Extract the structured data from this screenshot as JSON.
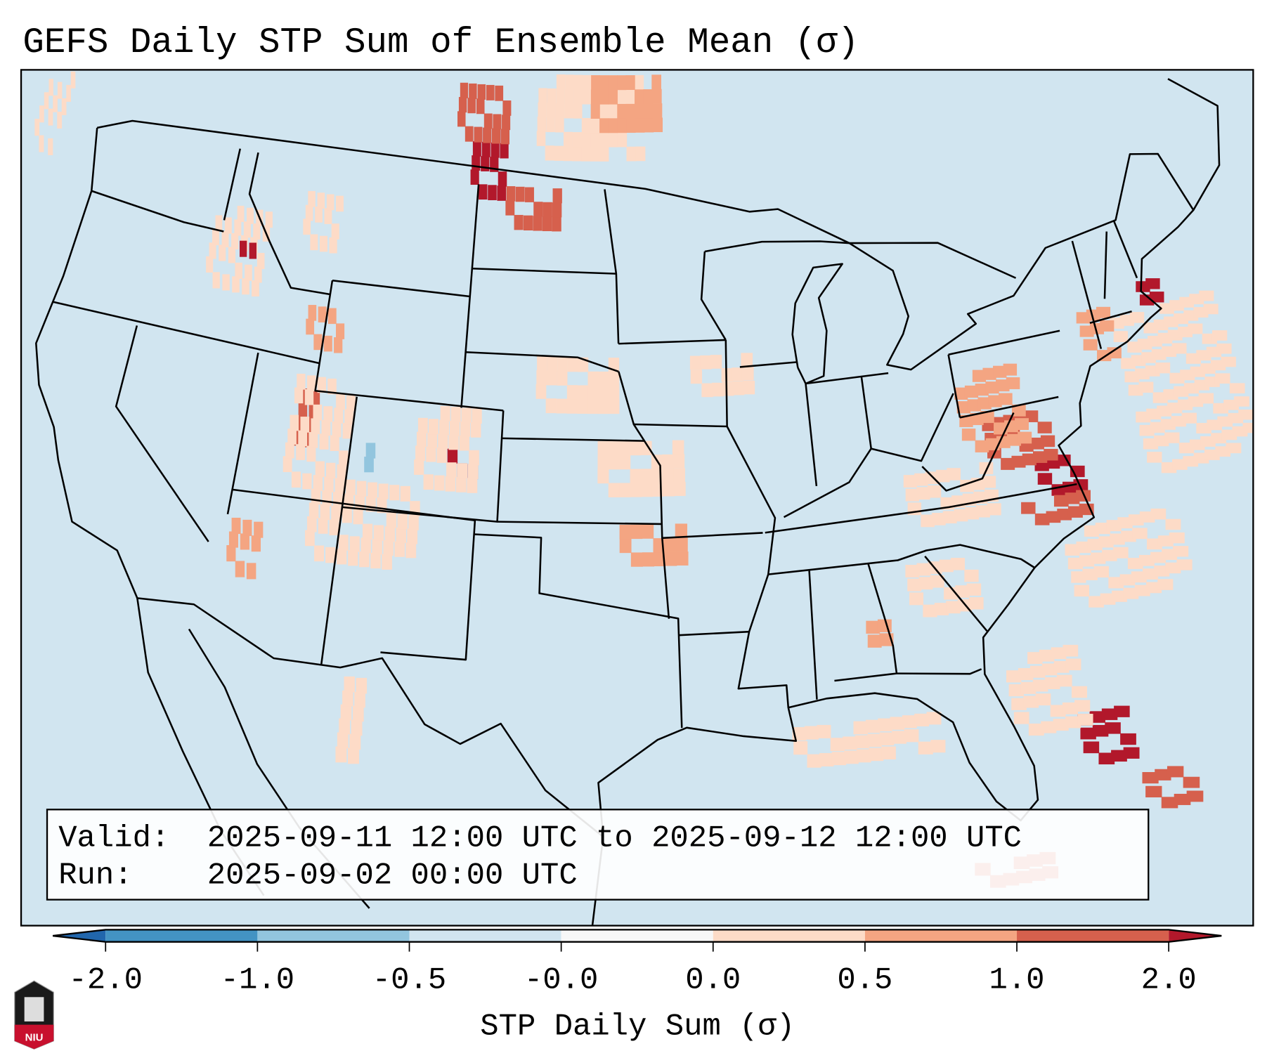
{
  "title": "GEFS Daily STP Sum of Ensemble Mean (σ)",
  "info_box": {
    "valid_label": "Valid:",
    "valid_value": "2025-09-11 12:00 UTC to 2025-09-12 12:00 UTC",
    "run_label": "Run:",
    "run_value": "2025-09-02 00:00 UTC"
  },
  "colorbar": {
    "label": "STP Daily Sum (σ)",
    "ticks": [
      "-2.0",
      "-1.0",
      "-0.5",
      "-0.0",
      "0.0",
      "0.5",
      "1.0",
      "2.0"
    ],
    "under_color": "#2166ac",
    "over_color": "#b2182b",
    "colors": [
      "#4393c3",
      "#92c5de",
      "#d1e5f0",
      "#f7f7f7",
      "#fddbc7",
      "#f4a582",
      "#d6604d"
    ]
  },
  "logo": {
    "text": "NIU"
  },
  "map": {
    "background": "#d1e5f0",
    "level_colors": {
      "5": "#fddbc7",
      "6": "#f4a582",
      "7": "#d6604d",
      "8": "#b2182b",
      "2": "#92c5de",
      "4": "#f7f7f7"
    },
    "cells_lon_lat_wdeg_hdeg_level": [
      [
        -104.5,
        48.5,
        2,
        2.5,
        8
      ],
      [
        -102.5,
        47.5,
        3,
        1.5,
        7
      ],
      [
        -105.5,
        50.5,
        3,
        2,
        7
      ],
      [
        -101,
        50,
        6,
        3,
        5
      ],
      [
        -98,
        51,
        4,
        2,
        6
      ],
      [
        -77.5,
        36.2,
        2,
        1.4,
        8
      ],
      [
        -79.5,
        37.5,
        3,
        2,
        7
      ],
      [
        -80.5,
        38.3,
        3,
        3,
        6
      ],
      [
        -83.5,
        36,
        4,
        2,
        5
      ],
      [
        -78.5,
        35.3,
        3,
        1,
        7
      ],
      [
        -72.5,
        36,
        5,
        6,
        5
      ],
      [
        -77,
        32,
        5,
        3,
        5
      ],
      [
        -74,
        40.5,
        1.5,
        2,
        6
      ],
      [
        -70.8,
        42,
        1,
        1,
        8
      ],
      [
        -78,
        26.5,
        2,
        2,
        8
      ],
      [
        -76,
        24.5,
        2,
        1.5,
        7
      ],
      [
        -80.5,
        28,
        3,
        3,
        5
      ],
      [
        -83,
        23,
        3,
        1,
        7
      ],
      [
        -111.7,
        39,
        1,
        2,
        7
      ],
      [
        -112,
        37.5,
        3,
        4,
        5
      ],
      [
        -104.5,
        38.5,
        1.2,
        1,
        8
      ],
      [
        -106,
        38,
        3,
        3,
        5
      ],
      [
        -108.3,
        38.4,
        0.5,
        1,
        2
      ],
      [
        -110.5,
        35,
        5,
        3,
        5
      ],
      [
        -113.8,
        34,
        1.5,
        2,
        6
      ],
      [
        -100.5,
        41,
        4,
        2,
        5
      ],
      [
        -97.5,
        38,
        4,
        2,
        5
      ],
      [
        -96.5,
        35.5,
        3,
        1.5,
        6
      ],
      [
        -84,
        32.8,
        3,
        2,
        5
      ],
      [
        -86,
        32,
        1,
        1,
        6
      ],
      [
        -117.5,
        44,
        3,
        3,
        5
      ],
      [
        -116,
        45.3,
        1,
        0.5,
        8
      ],
      [
        -89.5,
        28,
        6,
        1.5,
        5
      ],
      [
        -108,
        28,
        1,
        3,
        5
      ],
      [
        -93,
        41.5,
        3,
        1.5,
        5
      ],
      [
        -113,
        46,
        2,
        2,
        5
      ],
      [
        -128,
        47,
        1.5,
        3,
        5
      ],
      [
        -133,
        36,
        2,
        1.5,
        4
      ],
      [
        -112,
        42.5,
        2,
        1.5,
        6
      ]
    ],
    "outline": [
      [
        -124.7,
        48.4
      ],
      [
        -124,
        46.2
      ],
      [
        -124.1,
        43
      ],
      [
        -124.4,
        40.4
      ],
      [
        -123.7,
        39
      ],
      [
        -122.5,
        37.7
      ],
      [
        -121.9,
        36.6
      ],
      [
        -120.6,
        34.6
      ],
      [
        -118.4,
        34
      ],
      [
        -117.1,
        32.5
      ],
      [
        -114.7,
        32.7
      ],
      [
        -111,
        31.3
      ],
      [
        -108.2,
        31.3
      ],
      [
        -106.5,
        31.8
      ],
      [
        -104.5,
        29.6
      ],
      [
        -103,
        29
      ],
      [
        -101.4,
        29.8
      ],
      [
        -99.5,
        27.5
      ],
      [
        -97.2,
        25.9
      ],
      [
        -97.4,
        27.8
      ],
      [
        -95,
        29.3
      ],
      [
        -93.8,
        29.7
      ],
      [
        -91.5,
        29.3
      ],
      [
        -89.4,
        29
      ],
      [
        -89.6,
        30.2
      ],
      [
        -88,
        30.4
      ],
      [
        -86,
        30.4
      ],
      [
        -84.3,
        30
      ],
      [
        -83,
        29
      ],
      [
        -82.6,
        27.5
      ],
      [
        -81.8,
        26
      ],
      [
        -81,
        25.2
      ],
      [
        -80.2,
        25.8
      ],
      [
        -80.1,
        27
      ],
      [
        -80.6,
        28.5
      ],
      [
        -81.4,
        30.5
      ],
      [
        -81.2,
        31.8
      ],
      [
        -79.9,
        32.8
      ],
      [
        -78.5,
        33.9
      ],
      [
        -77,
        34.7
      ],
      [
        -75.5,
        35.2
      ],
      [
        -75.9,
        36.9
      ],
      [
        -76.3,
        38
      ],
      [
        -75.1,
        38.5
      ],
      [
        -74.9,
        39.3
      ],
      [
        -74,
        40.5
      ],
      [
        -72,
        41
      ],
      [
        -70.6,
        41.6
      ],
      [
        -70,
        41.8
      ],
      [
        -70.7,
        42.6
      ],
      [
        -70.2,
        43.7
      ],
      [
        -68,
        44.4
      ],
      [
        -67,
        44.8
      ],
      [
        -67.8,
        47.1
      ],
      [
        -69.2,
        47.4
      ],
      [
        -70.9,
        45.3
      ],
      [
        -74.7,
        45
      ],
      [
        -76.8,
        43.6
      ],
      [
        -79.2,
        43.3
      ],
      [
        -78.9,
        42.9
      ],
      [
        -82.4,
        41.7
      ],
      [
        -83.5,
        42
      ],
      [
        -82.5,
        43
      ],
      [
        -82.1,
        43.6
      ],
      [
        -82.5,
        45.3
      ],
      [
        -84.5,
        46.5
      ],
      [
        -88,
        48
      ],
      [
        -89.5,
        48
      ],
      [
        -95,
        49
      ],
      [
        -123,
        49
      ],
      [
        -124.7,
        48.4
      ]
    ],
    "borders": [
      [
        [
          -124,
          46.2
        ],
        [
          -119,
          46
        ],
        [
          -116.9,
          46
        ]
      ],
      [
        [
          -117,
          49
        ],
        [
          -117,
          46.4
        ]
      ],
      [
        [
          -124.2,
          42
        ],
        [
          -111,
          42
        ]
      ],
      [
        [
          -116,
          49
        ],
        [
          -116,
          47.5
        ],
        [
          -114.5,
          46
        ],
        [
          -113,
          44.5
        ],
        [
          -111,
          44.5
        ]
      ],
      [
        [
          -111,
          45
        ],
        [
          -104,
          45
        ]
      ],
      [
        [
          -104,
          46
        ],
        [
          -96.6,
          46
        ]
      ],
      [
        [
          -104,
          49
        ],
        [
          -104,
          41
        ]
      ],
      [
        [
          -111,
          45
        ],
        [
          -111,
          41
        ],
        [
          -102,
          41
        ]
      ],
      [
        [
          -109,
          41
        ],
        [
          -109,
          37
        ],
        [
          -102,
          37
        ],
        [
          -102,
          41
        ]
      ],
      [
        [
          -114,
          42
        ],
        [
          -114,
          36.1
        ]
      ],
      [
        [
          -120,
          42
        ],
        [
          -120,
          39
        ],
        [
          -114.6,
          35
        ]
      ],
      [
        [
          -109,
          37
        ],
        [
          -109,
          31.3
        ]
      ],
      [
        [
          -114,
          37
        ],
        [
          -103,
          37
        ]
      ],
      [
        [
          -103,
          37
        ],
        [
          -103,
          32
        ],
        [
          -106.6,
          32
        ]
      ],
      [
        [
          -103,
          36.5
        ],
        [
          -100,
          36.5
        ],
        [
          -100,
          34.5
        ],
        [
          -94,
          33.6
        ],
        [
          -94,
          29.7
        ]
      ],
      [
        [
          -102,
          37
        ],
        [
          -94.6,
          37
        ]
      ],
      [
        [
          -102,
          40
        ],
        [
          -95.3,
          40
        ]
      ],
      [
        [
          -104,
          43
        ],
        [
          -98.5,
          43
        ],
        [
          -96.5,
          42.5
        ]
      ],
      [
        [
          -96.5,
          43.5
        ],
        [
          -91.2,
          43.5
        ]
      ],
      [
        [
          -97.2,
          49
        ],
        [
          -96.6,
          46
        ],
        [
          -96.5,
          43.5
        ]
      ],
      [
        [
          -96.5,
          42.5
        ],
        [
          -95.8,
          40.6
        ],
        [
          -94.6,
          39.1
        ],
        [
          -94.6,
          36.5
        ],
        [
          -94.4,
          33.6
        ]
      ],
      [
        [
          -95.8,
          40.6
        ],
        [
          -91.4,
          40.4
        ]
      ],
      [
        [
          -91.2,
          43.5
        ],
        [
          -91.4,
          40.4
        ],
        [
          -89.5,
          37
        ],
        [
          -90,
          35
        ],
        [
          -91,
          33
        ],
        [
          -91.6,
          31
        ],
        [
          -89.6,
          31
        ],
        [
          -89.6,
          30.2
        ]
      ],
      [
        [
          -94.6,
          36.5
        ],
        [
          -90.1,
          36.5
        ]
      ],
      [
        [
          -94,
          33
        ],
        [
          -91,
          33
        ]
      ],
      [
        [
          -90,
          36.5
        ],
        [
          -81.7,
          36.6
        ],
        [
          -75.9,
          36.5
        ]
      ],
      [
        [
          -90,
          35
        ],
        [
          -84.3,
          35
        ],
        [
          -83,
          35.2
        ],
        [
          -81.5,
          35.2
        ],
        [
          -79,
          34.3
        ],
        [
          -78.5,
          33.9
        ]
      ],
      [
        [
          -88.2,
          35
        ],
        [
          -88.4,
          30.4
        ]
      ],
      [
        [
          -85.6,
          35
        ],
        [
          -85,
          32
        ],
        [
          -85,
          31
        ],
        [
          -87.6,
          31
        ]
      ],
      [
        [
          -85,
          31
        ],
        [
          -82,
          30.6
        ],
        [
          -81.5,
          30.7
        ]
      ],
      [
        [
          -83.1,
          35
        ],
        [
          -81,
          32
        ]
      ],
      [
        [
          -89.1,
          37
        ],
        [
          -86,
          38
        ],
        [
          -84.8,
          39.1
        ],
        [
          -82.6,
          38.4
        ],
        [
          -80.6,
          40.6
        ]
      ],
      [
        [
          -87.5,
          41.7
        ],
        [
          -87.5,
          38
        ]
      ],
      [
        [
          -84.8,
          41.7
        ],
        [
          -84.8,
          39.1
        ]
      ],
      [
        [
          -87.5,
          41.7
        ],
        [
          -83.5,
          41.7
        ]
      ],
      [
        [
          -90.6,
          42.5
        ],
        [
          -87.8,
          42.5
        ]
      ],
      [
        [
          -80.5,
          42
        ],
        [
          -75,
          42
        ]
      ],
      [
        [
          -80.5,
          39.7
        ],
        [
          -75.8,
          39.7
        ]
      ],
      [
        [
          -80.5,
          42
        ],
        [
          -80.5,
          39.7
        ]
      ],
      [
        [
          -82.6,
          38.2
        ],
        [
          -81.7,
          37.2
        ],
        [
          -80,
          37.4
        ],
        [
          -78,
          39.5
        ]
      ],
      [
        [
          -73.3,
          45
        ],
        [
          -73.3,
          41
        ]
      ],
      [
        [
          -71.5,
          45
        ],
        [
          -72.5,
          42.7
        ]
      ],
      [
        [
          -71,
          45.3
        ],
        [
          -70.7,
          43.1
        ]
      ],
      [
        [
          -73.5,
          42
        ],
        [
          -71.4,
          42
        ]
      ],
      [
        [
          -92,
          46.7
        ],
        [
          -92.3,
          45
        ],
        [
          -91.2,
          43.5
        ]
      ],
      [
        [
          -87.8,
          42.3
        ],
        [
          -87.5,
          41.7
        ],
        [
          -86.6,
          41.9
        ],
        [
          -86.2,
          43.5
        ],
        [
          -86.4,
          44.7
        ],
        [
          -85,
          45.8
        ],
        [
          -86.5,
          45.8
        ],
        [
          -87.6,
          44.6
        ],
        [
          -87.9,
          43.5
        ],
        [
          -87.8,
          42.3
        ]
      ],
      [
        [
          -84.5,
          46.5
        ],
        [
          -86,
          46.7
        ],
        [
          -89,
          46.9
        ],
        [
          -92,
          46.7
        ]
      ],
      [
        [
          -117.1,
          32.5
        ],
        [
          -116,
          30
        ],
        [
          -114,
          27.5
        ],
        [
          -112,
          25
        ],
        [
          -110,
          23
        ]
      ],
      [
        [
          -114.7,
          31.8
        ],
        [
          -112.8,
          30
        ],
        [
          -111,
          27.5
        ],
        [
          -109,
          25.5
        ],
        [
          -106,
          23
        ]
      ],
      [
        [
          -97.2,
          25.9
        ],
        [
          -97.7,
          22
        ],
        [
          -97,
          19.5
        ]
      ],
      [
        [
          -84.5,
          46.5
        ],
        [
          -80,
          46
        ],
        [
          -76.5,
          44.2
        ]
      ],
      [
        [
          -67,
          44.8
        ],
        [
          -65,
          46
        ],
        [
          -64,
          48
        ],
        [
          -66,
          49.5
        ]
      ]
    ]
  }
}
